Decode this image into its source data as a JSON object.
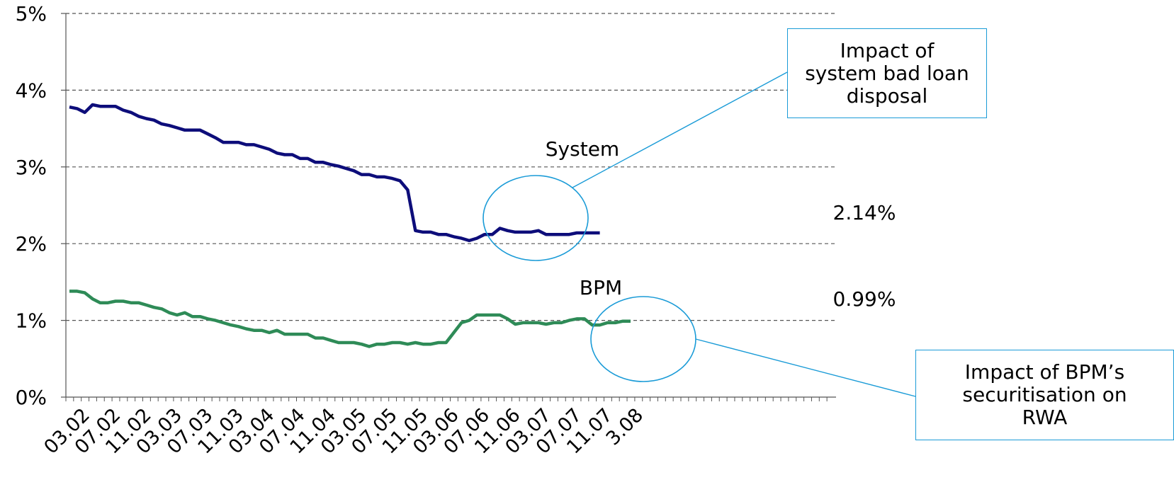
{
  "chart_data": {
    "type": "line",
    "title": "",
    "xlabel": "",
    "ylabel": "",
    "ylim": [
      0,
      5
    ],
    "y_ticks": [
      "0%",
      "1%",
      "2%",
      "3%",
      "4%",
      "5%"
    ],
    "x_tick_labels": [
      "03.02",
      "07.02",
      "11.02",
      "03.03",
      "07.03",
      "11.03",
      "03.04",
      "07.04",
      "11.04",
      "03.05",
      "07.05",
      "11.05",
      "03.06",
      "07.06",
      "11.06",
      "03.07",
      "07.07",
      "11.07",
      "3.08"
    ],
    "grid": "horizontal dashed",
    "series": [
      {
        "name": "System",
        "color": "#0d0d7a",
        "end_label": "2.14%",
        "values": [
          3.78,
          3.76,
          3.71,
          3.81,
          3.79,
          3.79,
          3.79,
          3.74,
          3.71,
          3.66,
          3.63,
          3.61,
          3.56,
          3.54,
          3.51,
          3.48,
          3.48,
          3.48,
          3.43,
          3.38,
          3.32,
          3.32,
          3.32,
          3.29,
          3.29,
          3.26,
          3.23,
          3.18,
          3.16,
          3.16,
          3.11,
          3.11,
          3.06,
          3.06,
          3.03,
          3.01,
          2.98,
          2.95,
          2.9,
          2.9,
          2.87,
          2.87,
          2.85,
          2.82,
          2.7,
          2.17,
          2.15,
          2.15,
          2.12,
          2.12,
          2.09,
          2.07,
          2.04,
          2.07,
          2.12,
          2.12,
          2.2,
          2.17,
          2.15,
          2.15,
          2.15,
          2.17,
          2.12,
          2.12,
          2.12,
          2.12,
          2.14,
          2.14,
          2.14,
          2.14
        ]
      },
      {
        "name": "BPM",
        "color": "#2e8b57",
        "end_label": "0.99%",
        "values": [
          1.38,
          1.38,
          1.36,
          1.28,
          1.23,
          1.23,
          1.25,
          1.25,
          1.23,
          1.23,
          1.2,
          1.17,
          1.15,
          1.1,
          1.07,
          1.1,
          1.05,
          1.05,
          1.02,
          1.0,
          0.97,
          0.94,
          0.92,
          0.89,
          0.87,
          0.87,
          0.84,
          0.87,
          0.82,
          0.82,
          0.82,
          0.82,
          0.77,
          0.77,
          0.74,
          0.71,
          0.71,
          0.71,
          0.69,
          0.66,
          0.69,
          0.69,
          0.71,
          0.71,
          0.69,
          0.71,
          0.69,
          0.69,
          0.71,
          0.71,
          0.84,
          0.97,
          1.0,
          1.07,
          1.07,
          1.07,
          1.07,
          1.02,
          0.95,
          0.97,
          0.97,
          0.97,
          0.95,
          0.97,
          0.97,
          1.0,
          1.02,
          1.02,
          0.94,
          0.94,
          0.97,
          0.97,
          0.99,
          0.99
        ]
      }
    ]
  },
  "labels": {
    "system": "System",
    "bpm": "BPM",
    "system_end": "2.14%",
    "bpm_end": "0.99%"
  },
  "annotations": {
    "system_box": "Impact of\nsystem bad loan\ndisposal",
    "bpm_box": "Impact of BPM’s\nsecuritisation on\nRWA",
    "color": "#1a9bd7"
  }
}
